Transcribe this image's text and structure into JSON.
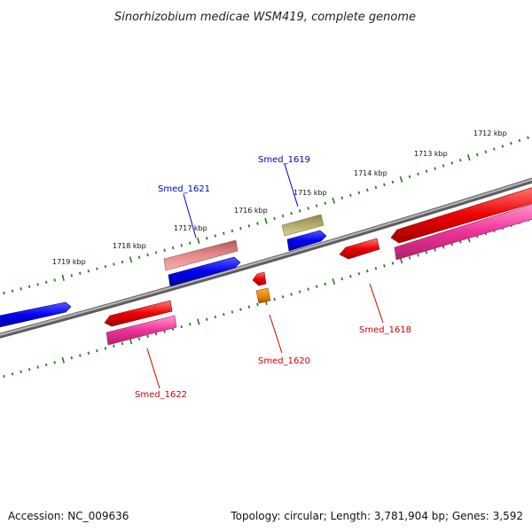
{
  "title": "Sinorhizobium medicae WSM419, complete genome",
  "footer": {
    "accession": "Accession: NC_009636",
    "summary": "Topology: circular; Length: 3,781,904 bp; Genes: 3,592"
  },
  "kbp_labels": [
    "1712 kbp",
    "1713 kbp",
    "1714 kbp",
    "1715 kbp",
    "1716 kbp",
    "1717 kbp",
    "1718 kbp",
    "1719 kbp"
  ],
  "gene_labels": {
    "smed_1619": "Smed_1619",
    "smed_1621": "Smed_1621",
    "smed_1618": "Smed_1618",
    "smed_1620": "Smed_1620",
    "smed_1622": "Smed_1622"
  },
  "colors": {
    "backbone": "#808080",
    "tick": "#2a7a1a",
    "forward_label": "#0000cc",
    "reverse_label": "#cc0000",
    "blue": "#0000ee",
    "red": "#ee0000",
    "magenta": "#ee3399",
    "salmon": "#e08080",
    "olive": "#b5ad6a",
    "orange": "#e89000"
  }
}
